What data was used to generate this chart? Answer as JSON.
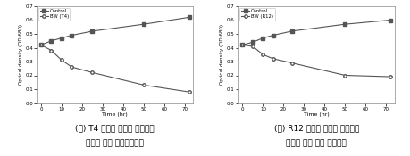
{
  "left_chart": {
    "legend_labels": [
      "Control",
      "BW (T4)"
    ],
    "time": [
      0,
      5,
      10,
      15,
      25,
      50,
      72
    ],
    "control": [
      0.42,
      0.45,
      0.47,
      0.49,
      0.52,
      0.57,
      0.62
    ],
    "treatment": [
      0.42,
      0.38,
      0.31,
      0.26,
      0.22,
      0.13,
      0.08
    ],
    "ylabel": "Optical density (OD 680)",
    "xlabel": "Time (hr)",
    "ylim": [
      0.0,
      0.7
    ],
    "yticks": [
      0.0,
      0.1,
      0.2,
      0.3,
      0.4,
      0.5,
      0.6,
      0.7
    ],
    "xticks": [
      0,
      10,
      20,
      30,
      40,
      50,
      60,
      70
    ],
    "caption_line1": "(가) T4 배양액 증류수 분획층을",
    "caption_line2": "이용한 조류 제어성능검증"
  },
  "right_chart": {
    "legend_labels": [
      "Control",
      "BW (R12)"
    ],
    "time": [
      0,
      5,
      10,
      15,
      24,
      50,
      72
    ],
    "control": [
      0.42,
      0.44,
      0.47,
      0.49,
      0.52,
      0.57,
      0.6
    ],
    "treatment": [
      0.42,
      0.41,
      0.35,
      0.32,
      0.29,
      0.2,
      0.19
    ],
    "ylabel": "Optical density (OD 680)",
    "xlabel": "Time (hr)",
    "ylim": [
      0.0,
      0.7
    ],
    "yticks": [
      0.0,
      0.1,
      0.2,
      0.3,
      0.4,
      0.5,
      0.6,
      0.7
    ],
    "xticks": [
      0,
      10,
      20,
      30,
      40,
      50,
      60,
      70
    ],
    "caption_line1": "(나) R12 배양액 증류수 분획층을",
    "caption_line2": "이용한 조류 제어 성능검증"
  },
  "line_color": "#555555",
  "fig_facecolor": "#ffffff",
  "axes_facecolor": "#ffffff"
}
